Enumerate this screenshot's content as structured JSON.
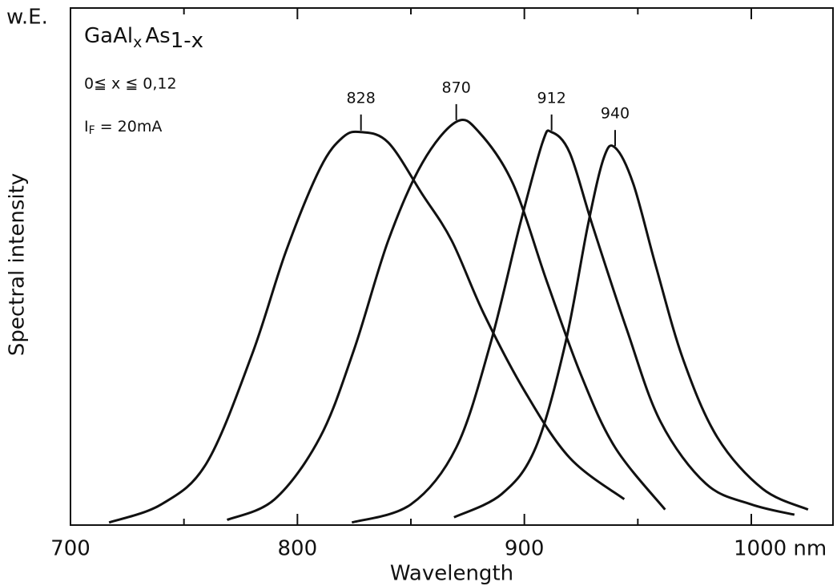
{
  "chart_data": {
    "type": "line",
    "y_unit_label": "w.E.",
    "xlabel": "Wavelength",
    "ylabel": "Spectral intensity",
    "formula": {
      "base1": "GaAl",
      "sub1": "x",
      "base2": "As",
      "sub2": "1-x"
    },
    "range_note": "0≦ x ≦ 0,12",
    "current_note": {
      "base": "I",
      "sub": "F",
      "rest": " = 20mA"
    },
    "xlim": [
      700,
      1036
    ],
    "ylim": [
      0,
      1
    ],
    "xticks": [
      700,
      800,
      900,
      {
        "value": 1000,
        "label": "1000 nm"
      }
    ],
    "xminorticks": [
      750,
      850,
      950
    ],
    "color": "#111111",
    "series": [
      {
        "name": "828",
        "x": [
          717,
          740,
          760,
          780,
          795,
          810,
          820,
          828,
          840,
          855,
          868,
          882,
          900,
          920,
          944
        ],
        "values": [
          0.005,
          0.04,
          0.12,
          0.33,
          0.53,
          0.69,
          0.75,
          0.76,
          0.74,
          0.64,
          0.55,
          0.41,
          0.26,
          0.13,
          0.05
        ]
      },
      {
        "name": "870",
        "x": [
          769,
          790,
          810,
          825,
          840,
          855,
          870,
          880,
          895,
          910,
          925,
          940,
          962
        ],
        "values": [
          0.01,
          0.05,
          0.17,
          0.34,
          0.55,
          0.7,
          0.78,
          0.76,
          0.66,
          0.47,
          0.29,
          0.15,
          0.03
        ]
      },
      {
        "name": "912",
        "x": [
          824,
          850,
          870,
          885,
          898,
          908,
          912,
          920,
          930,
          945,
          960,
          980,
          1000,
          1019
        ],
        "values": [
          0.005,
          0.04,
          0.15,
          0.35,
          0.58,
          0.74,
          0.76,
          0.72,
          0.58,
          0.38,
          0.2,
          0.08,
          0.04,
          0.02
        ]
      },
      {
        "name": "940",
        "x": [
          869,
          890,
          905,
          918,
          928,
          935,
          940,
          948,
          958,
          970,
          985,
          1005,
          1025
        ],
        "values": [
          0.015,
          0.06,
          0.15,
          0.35,
          0.58,
          0.71,
          0.73,
          0.66,
          0.5,
          0.32,
          0.17,
          0.07,
          0.03
        ]
      }
    ]
  }
}
